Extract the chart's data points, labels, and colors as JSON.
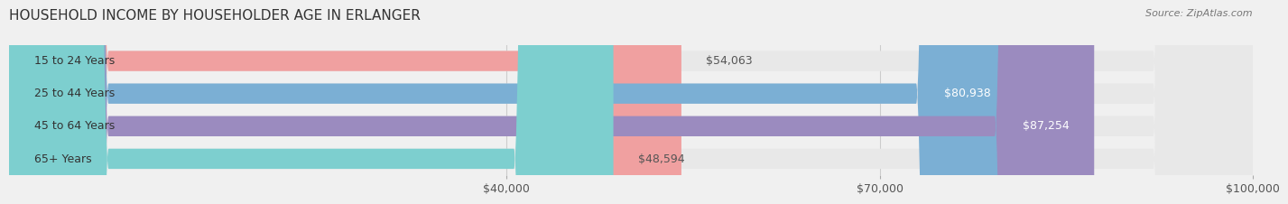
{
  "title": "HOUSEHOLD INCOME BY HOUSEHOLDER AGE IN ERLANGER",
  "source": "Source: ZipAtlas.com",
  "categories": [
    "15 to 24 Years",
    "25 to 44 Years",
    "45 to 64 Years",
    "65+ Years"
  ],
  "values": [
    54063,
    80938,
    87254,
    48594
  ],
  "bar_colors": [
    "#f0a0a0",
    "#7bafd4",
    "#9b8bbf",
    "#7dcfcf"
  ],
  "label_colors": [
    "#555555",
    "#ffffff",
    "#ffffff",
    "#555555"
  ],
  "x_min": 0,
  "x_max": 100000,
  "x_ticks": [
    40000,
    70000,
    100000
  ],
  "x_tick_labels": [
    "$40,000",
    "$70,000",
    "$100,000"
  ],
  "background_color": "#f0f0f0",
  "bar_background_color": "#e8e8e8",
  "title_fontsize": 11,
  "source_fontsize": 8,
  "label_fontsize": 9,
  "tick_fontsize": 9,
  "category_fontsize": 9
}
